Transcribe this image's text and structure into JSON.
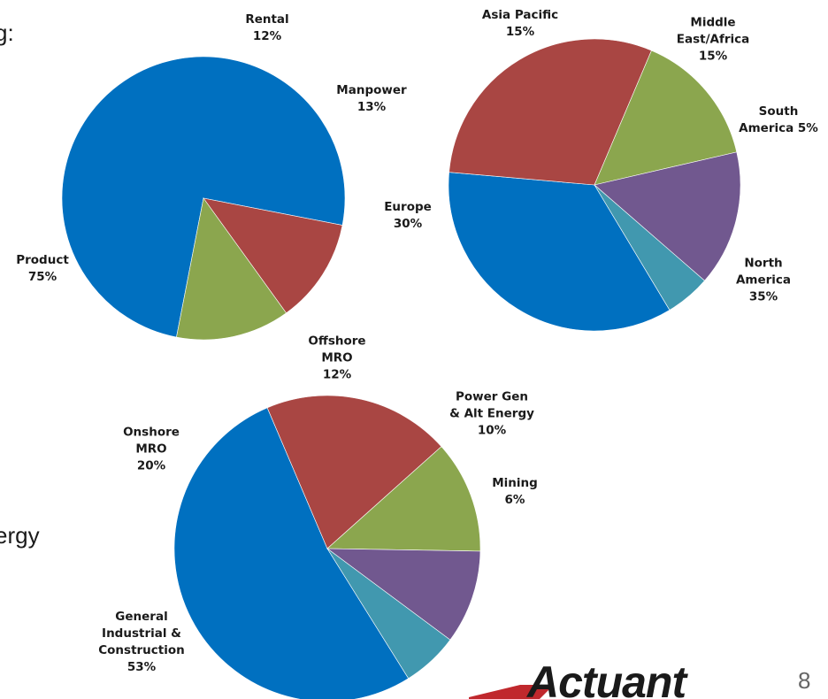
{
  "page": {
    "left_text_top": "g:",
    "left_text_bottom": "ergy",
    "logo_text": "Actuant",
    "page_number": "8"
  },
  "chart_data": [
    {
      "type": "pie",
      "title": "",
      "slices": [
        {
          "label": "Product",
          "value": 75,
          "label_lines": [
            "Product",
            "75%"
          ],
          "color": "#0070C0"
        },
        {
          "label": "Rental",
          "value": 12,
          "label_lines": [
            "Rental",
            "12%"
          ],
          "color": "#A94643"
        },
        {
          "label": "Manpower",
          "value": 13,
          "label_lines": [
            "Manpower",
            "13%"
          ],
          "color": "#8BA64E"
        }
      ]
    },
    {
      "type": "pie",
      "title": "",
      "slices": [
        {
          "label": "North America",
          "value": 35,
          "label_lines": [
            "North",
            "America",
            "35%"
          ],
          "color": "#0070C0"
        },
        {
          "label": "Europe",
          "value": 30,
          "label_lines": [
            "Europe",
            "30%"
          ],
          "color": "#A94643"
        },
        {
          "label": "Asia Pacific",
          "value": 15,
          "label_lines": [
            "Asia Pacific",
            "15%"
          ],
          "color": "#8BA64E"
        },
        {
          "label": "Middle East/Africa",
          "value": 15,
          "label_lines": [
            "Middle",
            "East/Africa",
            "15%"
          ],
          "color": "#71588F"
        },
        {
          "label": "South America",
          "value": 5,
          "label_lines": [
            "South",
            "America 5%"
          ],
          "color": "#4198AF"
        }
      ]
    },
    {
      "type": "pie",
      "title": "",
      "slices": [
        {
          "label": "General Industrial & Construction",
          "value": 53,
          "label_lines": [
            "General",
            "Industrial &",
            "Construction",
            "53%"
          ],
          "color": "#0070C0"
        },
        {
          "label": "Onshore MRO",
          "value": 20,
          "label_lines": [
            "Onshore",
            "MRO",
            "20%"
          ],
          "color": "#A94643"
        },
        {
          "label": "Offshore MRO",
          "value": 12,
          "label_lines": [
            "Offshore",
            "MRO",
            "12%"
          ],
          "color": "#8BA64E"
        },
        {
          "label": "Power Gen & Alt Energy",
          "value": 10,
          "label_lines": [
            "Power Gen",
            "& Alt Energy",
            "10%"
          ],
          "color": "#71588F"
        },
        {
          "label": "Mining",
          "value": 6,
          "label_lines": [
            "Mining",
            "6%"
          ],
          "color": "#4198AF"
        }
      ]
    }
  ]
}
